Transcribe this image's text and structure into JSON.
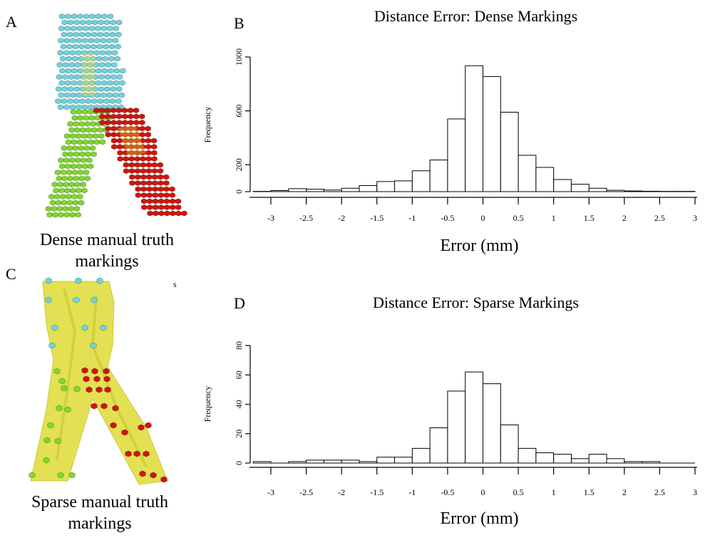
{
  "panels": {
    "a": {
      "letter": "A",
      "caption": "Dense manual truth markings"
    },
    "b": {
      "letter": "B"
    },
    "c": {
      "letter": "C",
      "caption": "Sparse manual truth markings",
      "stray_mark": "s"
    },
    "d": {
      "letter": "D"
    }
  },
  "colors": {
    "trunk": "#6fd3df",
    "left_branch": "#7fd92a",
    "right_branch": "#d0140c",
    "vessel_surface": "#e2e04a",
    "bar_fill": "#ffffff",
    "bar_stroke": "#000000"
  },
  "chart_data": [
    {
      "type": "bar",
      "title": "Distance Error: Dense Markings",
      "xlabel": "Error (mm)",
      "ylabel": "Frequency",
      "bin_width": 0.25,
      "bin_starts": [
        -3.25,
        -3.0,
        -2.75,
        -2.5,
        -2.25,
        -2.0,
        -1.75,
        -1.5,
        -1.25,
        -1.0,
        -0.75,
        -0.5,
        -0.25,
        0.0,
        0.25,
        0.5,
        0.75,
        1.0,
        1.25,
        1.5,
        1.75,
        2.0,
        2.25,
        2.5,
        2.75
      ],
      "values": [
        2,
        8,
        22,
        18,
        12,
        25,
        45,
        75,
        80,
        155,
        235,
        540,
        935,
        855,
        590,
        270,
        180,
        90,
        55,
        25,
        10,
        5,
        3,
        2,
        2
      ],
      "xlim": [
        -3.25,
        3.0
      ],
      "ylim": [
        0,
        1000
      ],
      "y_ticks": [
        0,
        200,
        600,
        1000
      ],
      "x_ticks": [
        -3,
        -2.5,
        -2,
        -1.5,
        -1,
        -0.5,
        0,
        0.5,
        1,
        1.5,
        2,
        2.5,
        3
      ],
      "x_tick_labels": [
        "-3",
        "-2.5",
        "-2",
        "-1.5",
        "-1",
        "-0.5",
        "0",
        "0.5",
        "1",
        "1.5",
        "2",
        "2.5",
        "3"
      ]
    },
    {
      "type": "bar",
      "title": "Distance Error: Sparse Markings",
      "xlabel": "Error (mm)",
      "ylabel": "Frequency",
      "bin_width": 0.25,
      "bin_starts": [
        -3.25,
        -3.0,
        -2.75,
        -2.5,
        -2.25,
        -2.0,
        -1.75,
        -1.5,
        -1.25,
        -1.0,
        -0.75,
        -0.5,
        -0.25,
        0.0,
        0.25,
        0.5,
        0.75,
        1.0,
        1.25,
        1.5,
        1.75,
        2.0,
        2.25,
        2.5
      ],
      "values": [
        1,
        0,
        1,
        2,
        2,
        2,
        1,
        4,
        4,
        10,
        24,
        49,
        62,
        54,
        26,
        10,
        7,
        6,
        3,
        6,
        3,
        1,
        1,
        0
      ],
      "xlim": [
        -3.25,
        3.0
      ],
      "ylim": [
        0,
        80
      ],
      "y_ticks": [
        0,
        20,
        40,
        60,
        80
      ],
      "x_ticks": [
        -3,
        -2.5,
        -2,
        -1.5,
        -1,
        -0.5,
        0,
        0.5,
        1,
        1.5,
        2,
        2.5,
        3
      ],
      "x_tick_labels": [
        "-3",
        "-2.5",
        "-2",
        "-1.5",
        "-1",
        "-0.5",
        "0",
        "0.5",
        "1",
        "1.5",
        "2",
        "2.5",
        "3"
      ]
    }
  ]
}
